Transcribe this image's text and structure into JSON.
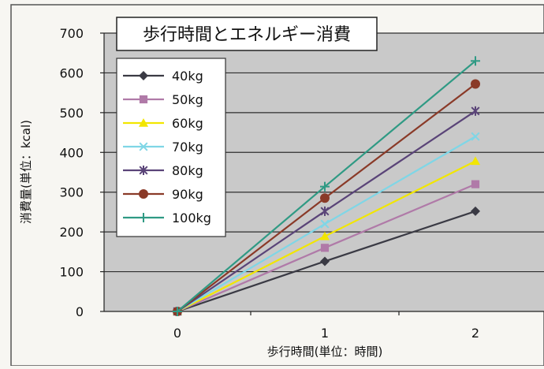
{
  "chart_data": {
    "type": "line",
    "title": "歩行時間とエネルギー消費",
    "xlabel": "歩行時間(単位：時間)",
    "ylabel": "消費量(単位：kcal)",
    "x": [
      0,
      1,
      2
    ],
    "x_tick_labels": [
      "0",
      "1",
      "2"
    ],
    "ylim": [
      0,
      700
    ],
    "y_ticks": [
      0,
      100,
      200,
      300,
      400,
      500,
      600,
      700
    ],
    "grid": true,
    "legend_position": "top-left",
    "series": [
      {
        "name": "40kg",
        "values": [
          0,
          126,
          252
        ],
        "color": "#3a3a44",
        "marker": "diamond"
      },
      {
        "name": "50kg",
        "values": [
          0,
          160,
          320
        ],
        "color": "#b07aa8",
        "marker": "square"
      },
      {
        "name": "60kg",
        "values": [
          0,
          189,
          378
        ],
        "color": "#f2e600",
        "marker": "triangle"
      },
      {
        "name": "70kg",
        "values": [
          0,
          220,
          440
        ],
        "color": "#7fd6e6",
        "marker": "x"
      },
      {
        "name": "80kg",
        "values": [
          0,
          252,
          504
        ],
        "color": "#5a4478",
        "marker": "star"
      },
      {
        "name": "90kg",
        "values": [
          0,
          285,
          572
        ],
        "color": "#8a3a28",
        "marker": "circle"
      },
      {
        "name": "100kg",
        "values": [
          0,
          314,
          630
        ],
        "color": "#2f9a84",
        "marker": "plus"
      }
    ]
  },
  "colors": {
    "plot_background": "#c9c9c9",
    "page_background": "#f7f6f2",
    "gridline": "#2e2e2e"
  }
}
